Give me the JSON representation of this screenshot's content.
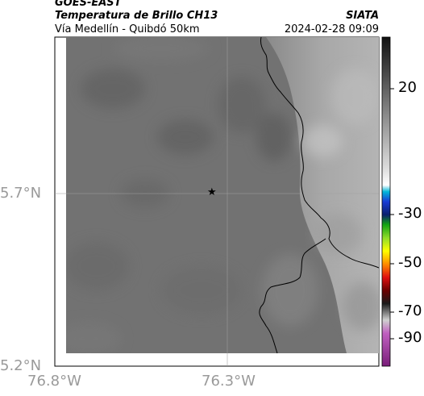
{
  "header": {
    "satellite": "GOES-EAST",
    "product": "Temperatura de Brillo CH13",
    "org": "SIATA",
    "route": "Vía Medellín - Quibdó 50km",
    "timestamp": "2024-02-28 09:09"
  },
  "axes": {
    "lat_ticks": [
      "5.7°N",
      "5.2°N"
    ],
    "lon_ticks": [
      "76.8°W",
      "76.3°W"
    ]
  },
  "colorbar": {
    "ticks": [
      "20",
      "-30",
      "-50",
      "-70",
      "-90"
    ]
  },
  "map": {
    "marker_icon": "star-icon",
    "colors": {
      "background_gray": "#707070",
      "east_light": "#b0b0b0",
      "coastline": "#000000",
      "gridline": "#a0a0a0"
    }
  }
}
